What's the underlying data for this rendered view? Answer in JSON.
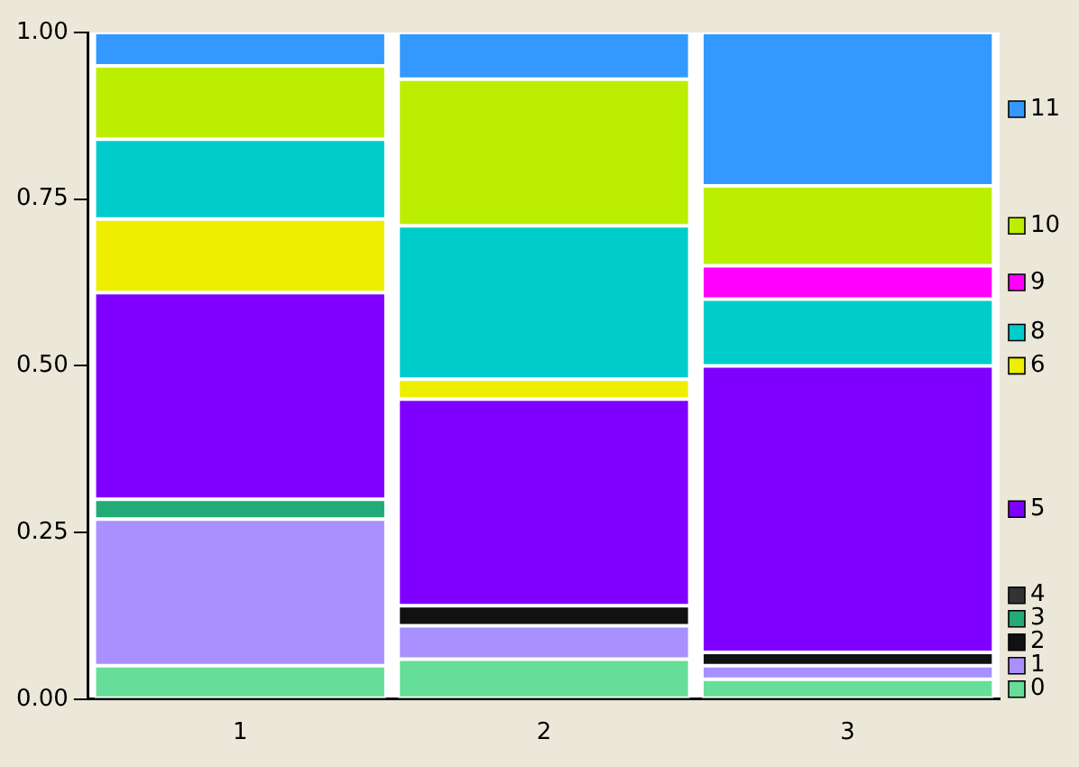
{
  "chart_data": {
    "type": "bar",
    "stacked": true,
    "categories": [
      "1",
      "2",
      "3"
    ],
    "series": [
      {
        "name": "0",
        "color": "#66dd99",
        "values": [
          0.05,
          0.06,
          0.03
        ]
      },
      {
        "name": "1",
        "color": "#a890ff",
        "values": [
          0.22,
          0.05,
          0.02
        ]
      },
      {
        "name": "2",
        "color": "#111111",
        "values": [
          0,
          0.03,
          0.02
        ]
      },
      {
        "name": "3",
        "color": "#22aa77",
        "values": [
          0.03,
          0,
          0
        ]
      },
      {
        "name": "4",
        "color": "#333333",
        "values": [
          0,
          0,
          0
        ]
      },
      {
        "name": "5",
        "color": "#8000ff",
        "values": [
          0.31,
          0.31,
          0.43
        ]
      },
      {
        "name": "6",
        "color": "#eeee00",
        "values": [
          0.11,
          0.03,
          0
        ]
      },
      {
        "name": "8",
        "color": "#00cccc",
        "values": [
          0.12,
          0.23,
          0.1
        ]
      },
      {
        "name": "9",
        "color": "#ff00ff",
        "values": [
          0,
          0,
          0.05
        ]
      },
      {
        "name": "10",
        "color": "#bbee00",
        "values": [
          0.11,
          0.22,
          0.12
        ]
      },
      {
        "name": "11",
        "color": "#3399ff",
        "values": [
          0.05,
          0.07,
          0.23
        ]
      }
    ],
    "ylim": [
      0,
      1
    ],
    "yticks": [
      {
        "value": 0,
        "label": "0.00"
      },
      {
        "value": 0.25,
        "label": "0.25"
      },
      {
        "value": 0.5,
        "label": "0.50"
      },
      {
        "value": 0.75,
        "label": "0.75"
      },
      {
        "value": 1,
        "label": "1.00"
      }
    ],
    "grid": false,
    "legend": "right"
  }
}
